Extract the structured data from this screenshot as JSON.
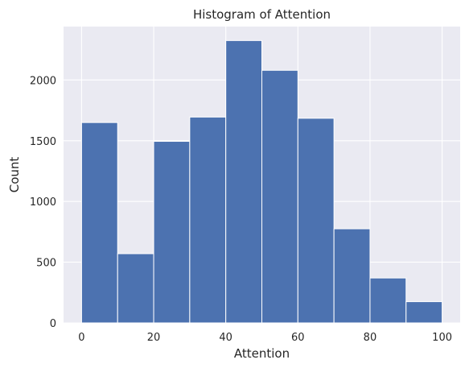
{
  "chart_data": {
    "type": "bar",
    "title": "Histogram of Attention",
    "xlabel": "Attention",
    "ylabel": "Count",
    "bins": [
      {
        "x0": 0,
        "x1": 10,
        "count": 1650
      },
      {
        "x0": 10,
        "x1": 20,
        "count": 570
      },
      {
        "x0": 20,
        "x1": 30,
        "count": 1495
      },
      {
        "x0": 30,
        "x1": 40,
        "count": 1695
      },
      {
        "x0": 40,
        "x1": 50,
        "count": 2325
      },
      {
        "x0": 50,
        "x1": 60,
        "count": 2080
      },
      {
        "x0": 60,
        "x1": 70,
        "count": 1685
      },
      {
        "x0": 70,
        "x1": 80,
        "count": 775
      },
      {
        "x0": 80,
        "x1": 90,
        "count": 370
      },
      {
        "x0": 90,
        "x1": 100,
        "count": 175
      }
    ],
    "xlim": [
      -5,
      105
    ],
    "ylim": [
      0,
      2440
    ],
    "xticks": [
      0,
      20,
      40,
      60,
      80,
      100
    ],
    "yticks": [
      0,
      500,
      1000,
      1500,
      2000
    ],
    "grid": true,
    "colors": {
      "bar": "#4c72b0",
      "bar_edge": "#ffffff",
      "plot_background": "#eaeaf2",
      "grid": "#ffffff"
    }
  }
}
